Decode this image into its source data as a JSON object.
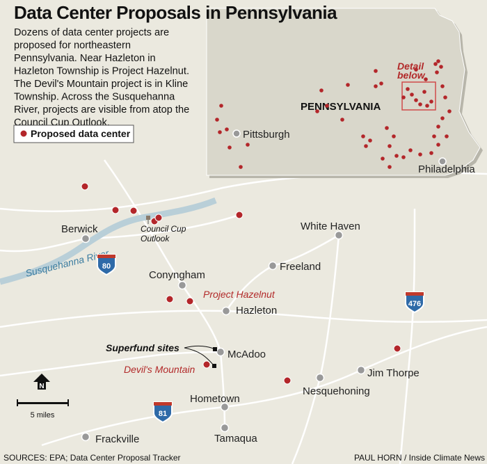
{
  "header": {
    "title": "Data Center Proposals in Pennsylvania",
    "description": [
      "Dozens of data center projects are",
      "proposed for northeastern",
      "Pennsylvania. Near Hazleton in",
      "Hazleton Township is Project Hazelnut.",
      "The Devil's Mountain project is in Kline",
      "Township. Across the Susquehanna",
      "River, projects are visible from atop the",
      "Council Cup Outlook."
    ]
  },
  "legend": {
    "label": "Proposed data center"
  },
  "inset": {
    "state": "PENNSYLVANIA",
    "detail": [
      "Detail",
      "below"
    ],
    "cities": [
      "Pittsburgh",
      "Philadelphia"
    ]
  },
  "places": [
    "Berwick",
    "White Haven",
    "Freeland",
    "Conyngham",
    "Hazleton",
    "McAdoo",
    "Jim Thorpe",
    "Nesquehoning",
    "Hometown",
    "Tamaqua",
    "Frackville"
  ],
  "annotations": {
    "council_cup": [
      "Council Cup",
      "Outlook"
    ],
    "project_hazelnut": "Project Hazelnut",
    "devils_mountain": "Devil's Mountain",
    "superfund": "Superfund sites"
  },
  "river": "Susquehanna River",
  "highways": [
    "80",
    "476",
    "81"
  ],
  "north": "N",
  "scale": "5 miles",
  "footer": {
    "sources": "SOURCES: EPA; Data Center Proposal Tracker",
    "credit": "PAUL HORN / Inside Climate News"
  }
}
